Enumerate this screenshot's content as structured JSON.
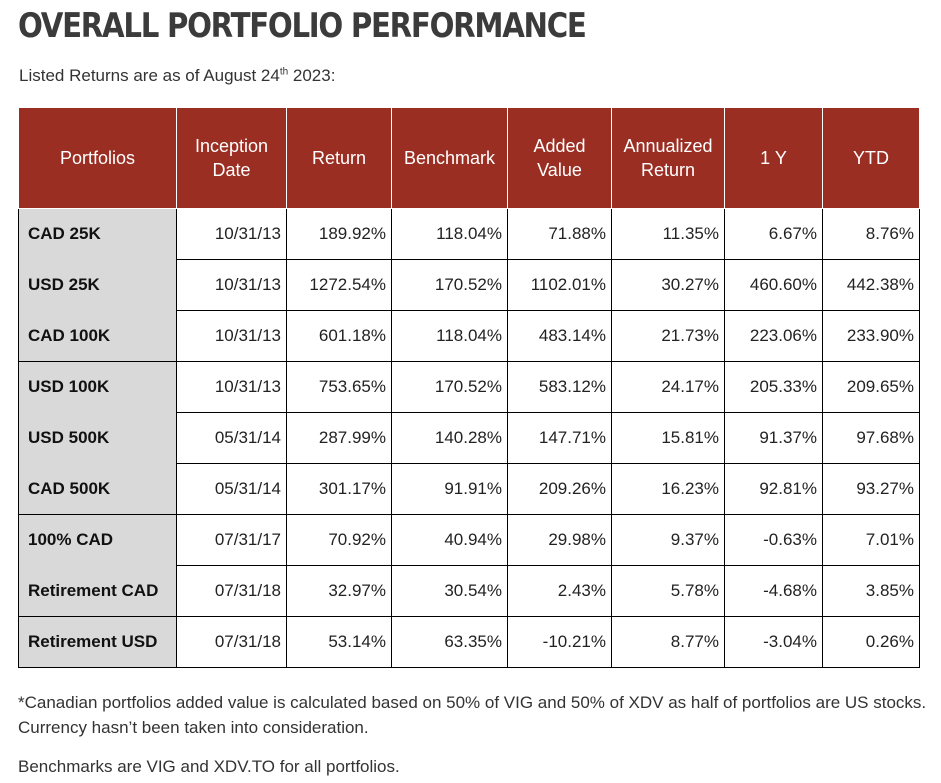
{
  "title": "OVERALL PORTFOLIO PERFORMANCE",
  "subtitle": {
    "before": "Listed Returns are as of August 24",
    "sup": "th",
    "after": " 2023:"
  },
  "colors": {
    "header_bg": "#9b2e22",
    "name_col_bg": "#d9d9d9"
  },
  "table": {
    "headers": [
      "Portfolios",
      "Inception Date",
      "Return",
      "Benchmark",
      "Added Value",
      "Annualized Return",
      "1 Y",
      "YTD"
    ],
    "groups": [
      [
        [
          "CAD 25K",
          "10/31/13",
          "189.92%",
          "118.04%",
          "71.88%",
          "11.35%",
          "6.67%",
          "8.76%"
        ],
        [
          "USD 25K",
          "10/31/13",
          "1272.54%",
          "170.52%",
          "1102.01%",
          "30.27%",
          "460.60%",
          "442.38%"
        ],
        [
          "CAD 100K",
          "10/31/13",
          "601.18%",
          "118.04%",
          "483.14%",
          "21.73%",
          "223.06%",
          "233.90%"
        ]
      ],
      [
        [
          "USD 100K",
          "10/31/13",
          "753.65%",
          "170.52%",
          "583.12%",
          "24.17%",
          "205.33%",
          "209.65%"
        ],
        [
          "USD 500K",
          "05/31/14",
          "287.99%",
          "140.28%",
          "147.71%",
          "15.81%",
          "91.37%",
          "97.68%"
        ],
        [
          "CAD 500K",
          "05/31/14",
          "301.17%",
          "91.91%",
          "209.26%",
          "16.23%",
          "92.81%",
          "93.27%"
        ]
      ],
      [
        [
          "100% CAD",
          "07/31/17",
          "70.92%",
          "40.94%",
          "29.98%",
          "9.37%",
          "-0.63%",
          "7.01%"
        ],
        [
          "Retirement CAD",
          "07/31/18",
          "32.97%",
          "30.54%",
          "2.43%",
          "5.78%",
          "-4.68%",
          "3.85%"
        ]
      ],
      [
        [
          "Retirement USD",
          "07/31/18",
          "53.14%",
          "63.35%",
          "-10.21%",
          "8.77%",
          "-3.04%",
          "0.26%"
        ]
      ]
    ]
  },
  "footnote": "*Canadian portfolios added value is calculated based on 50% of VIG and 50% of XDV as half of portfolios are US stocks. Currency hasn’t been taken into consideration.",
  "benchmark_note": "Benchmarks are VIG and XDV.TO for all portfolios."
}
